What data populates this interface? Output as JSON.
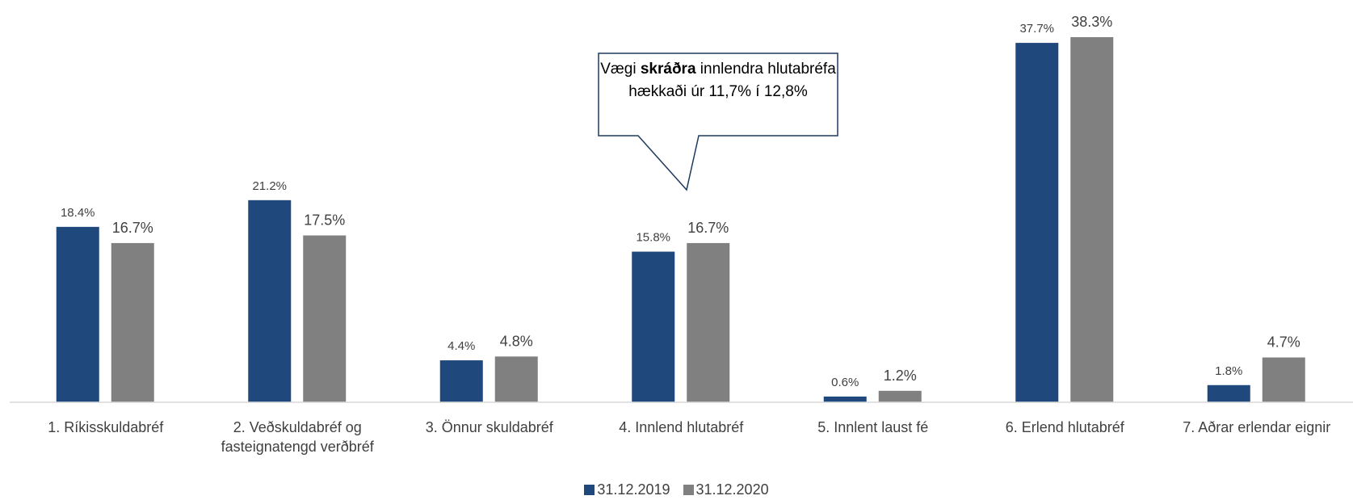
{
  "chart_data": {
    "type": "bar",
    "categories": [
      "1. Ríkisskuldabréf",
      "2. Veðskuldabréf og fasteignatengd verðbréf",
      "3. Önnur skuldabréf",
      "4. Innlend hlutabréf",
      "5. Innlent laust fé",
      "6. Erlend hlutabréf",
      "7. Aðrar erlendar eignir"
    ],
    "series": [
      {
        "name": "31.12.2019",
        "color": "#1f497d",
        "values": [
          18.4,
          21.2,
          4.4,
          15.8,
          0.6,
          37.7,
          1.8
        ],
        "value_labels": [
          "18.4%",
          "21.2%",
          "4.4%",
          "15.8%",
          "0.6%",
          "37.7%",
          "1.8%"
        ]
      },
      {
        "name": "31.12.2020",
        "color": "#808080",
        "values": [
          16.7,
          17.5,
          4.8,
          16.7,
          1.2,
          38.3,
          4.7
        ],
        "value_labels": [
          "16.7%",
          "17.5%",
          "4.8%",
          "16.7%",
          "1.2%",
          "38.3%",
          "4.7%"
        ]
      }
    ],
    "annotation": {
      "parts": [
        "Vægi ",
        "skráðra",
        " innlendra hlutabréfa hækkaði úr 11,7% í 12,8%"
      ]
    },
    "legend": "bottom"
  }
}
